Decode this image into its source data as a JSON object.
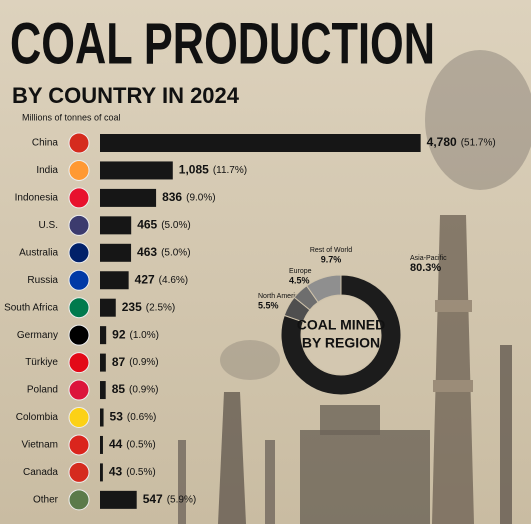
{
  "chart_data": [
    {
      "type": "bar",
      "orientation": "horizontal",
      "title": "COAL PRODUCTION",
      "subtitle": "BY COUNTRY IN 2024",
      "unit_label": "Millions of tonnes of coal",
      "categories": [
        "China",
        "India",
        "Indonesia",
        "U.S.",
        "Australia",
        "Russia",
        "South Africa",
        "Germany",
        "Türkiye",
        "Poland",
        "Colombia",
        "Vietnam",
        "Canada",
        "Other"
      ],
      "values": [
        4780,
        1085,
        836,
        465,
        463,
        427,
        235,
        92,
        87,
        85,
        53,
        44,
        43,
        547
      ],
      "value_labels": [
        "4,780",
        "1,085",
        "836",
        "465",
        "463",
        "427",
        "235",
        "92",
        "87",
        "85",
        "53",
        "44",
        "43",
        "547"
      ],
      "shares": [
        51.7,
        11.7,
        9.0,
        5.0,
        5.0,
        4.6,
        2.5,
        1.0,
        0.9,
        0.9,
        0.6,
        0.5,
        0.5,
        5.9
      ],
      "share_labels": [
        "(51.7%)",
        "(11.7%)",
        "(9.0%)",
        "(5.0%)",
        "(5.0%)",
        "(4.6%)",
        "(2.5%)",
        "(1.0%)",
        "(0.9%)",
        "(0.9%)",
        "(0.6%)",
        "(0.5%)",
        "(0.5%)",
        "(5.9%)"
      ],
      "color": "#161616",
      "xlim": [
        0,
        4800
      ]
    },
    {
      "type": "pie",
      "donut": true,
      "center_text": [
        "COAL MINED",
        "BY REGION"
      ],
      "categories": [
        "Asia-Pacific",
        "North America",
        "Europe",
        "Rest of World"
      ],
      "values": [
        80.3,
        5.5,
        4.5,
        9.7
      ],
      "value_labels": [
        "80.3%",
        "5.5%",
        "4.5%",
        "9.7%"
      ],
      "colors": [
        "#1c1c1c",
        "#4f4f4f",
        "#6e6e6e",
        "#8f8f8f"
      ]
    }
  ]
}
